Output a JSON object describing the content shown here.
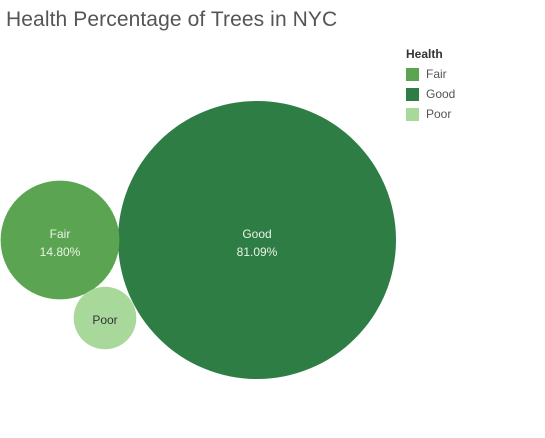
{
  "chart_data": {
    "type": "packed-bubble",
    "title": "Health Percentage of Trees in NYC",
    "legend": {
      "title": "Health",
      "items": [
        {
          "name": "Fair",
          "color": "#5ba552"
        },
        {
          "name": "Good",
          "color": "#2e7d45"
        },
        {
          "name": "Poor",
          "color": "#a8d89a"
        }
      ]
    },
    "bubbles": [
      {
        "category": "Good",
        "value": 81.09,
        "value_label": "81.09%",
        "color": "#2e7d45",
        "show_value": true
      },
      {
        "category": "Fair",
        "value": 14.8,
        "value_label": "14.80%",
        "color": "#5ba552",
        "show_value": true
      },
      {
        "category": "Poor",
        "value": 4.11,
        "value_label": "",
        "color": "#a8d89a",
        "show_value": false
      }
    ]
  }
}
